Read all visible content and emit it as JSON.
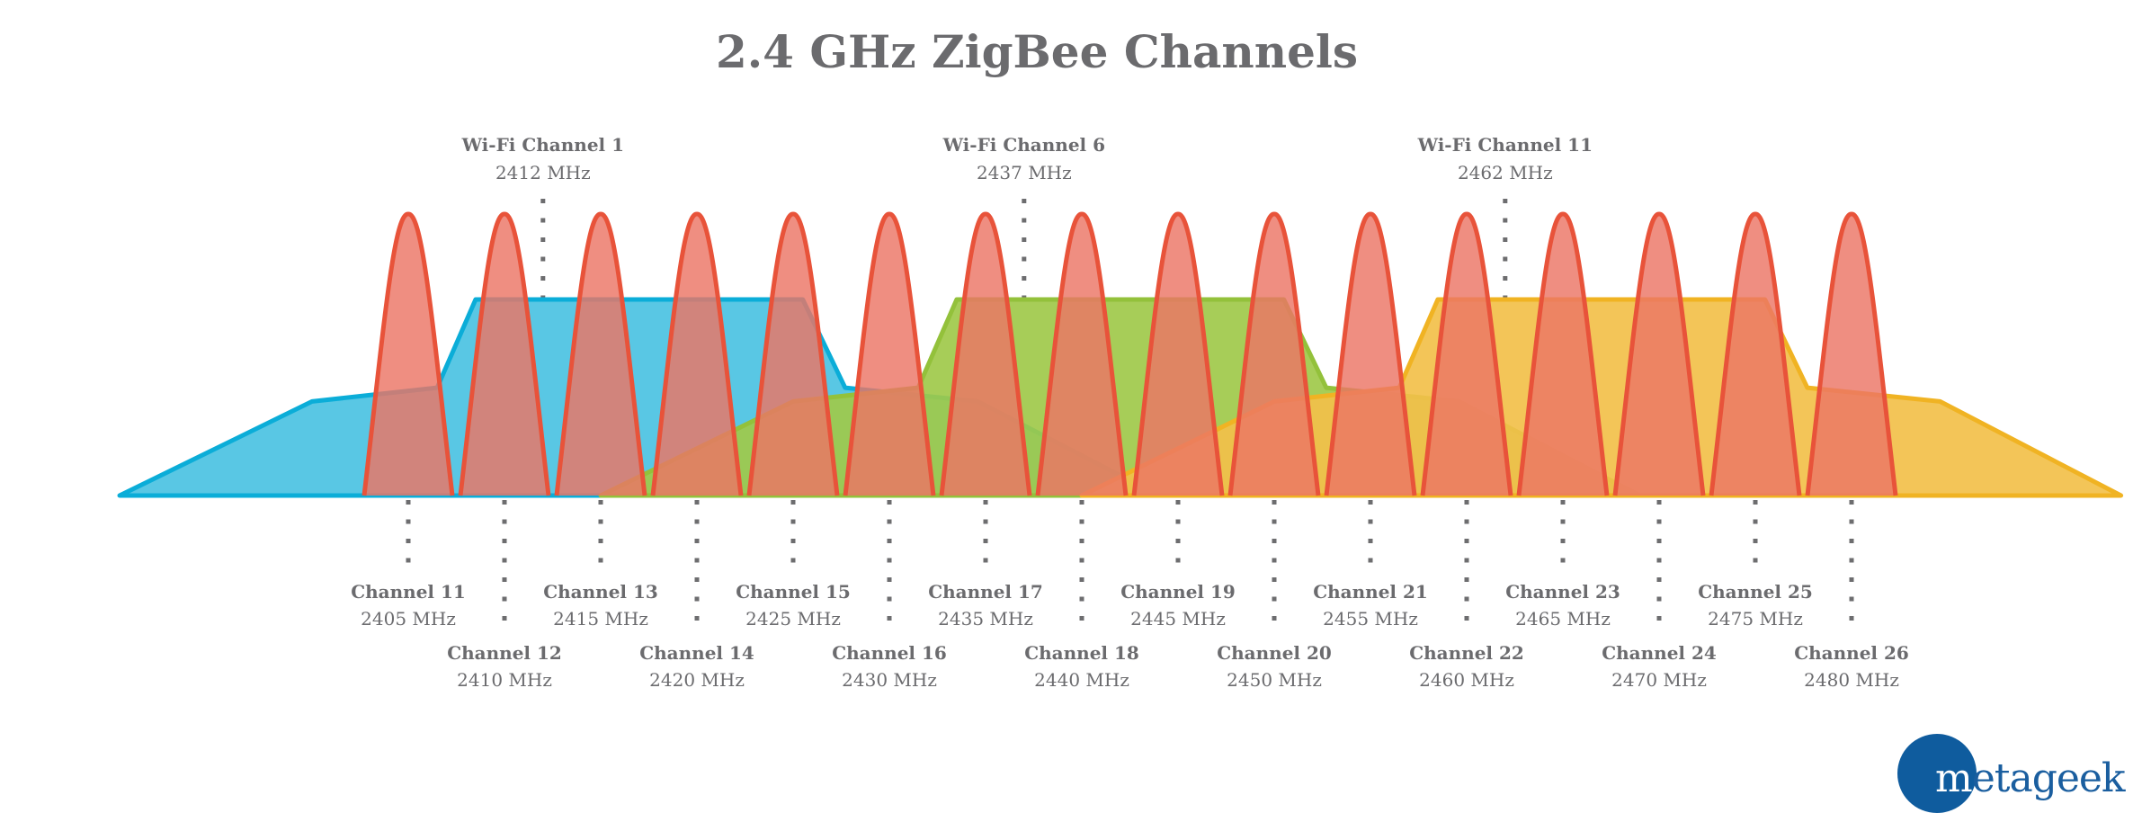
{
  "title": "2.4 GHz ZigBee Channels",
  "colors": {
    "text": "#6b6b6e",
    "dots": "#6d6d6f",
    "zigbee_stroke": "#e8533a",
    "zigbee_fill": "#ec7565",
    "wifi1_fill": "#4bc2e2",
    "wifi1_stroke": "#0badd8",
    "wifi6_fill": "#9fc94a",
    "wifi6_stroke": "#93c13b",
    "wifi11_fill": "#f2c04a",
    "wifi11_stroke": "#f0b323",
    "logo": "#0f5c9e"
  },
  "wifi_channels": [
    {
      "label": "Wi-Fi Channel 1",
      "freq": "2412 MHz"
    },
    {
      "label": "Wi-Fi Channel 6",
      "freq": "2437 MHz"
    },
    {
      "label": "Wi-Fi Channel 11",
      "freq": "2462 MHz"
    }
  ],
  "zigbee_channels": [
    {
      "label": "Channel 11",
      "freq": "2405 MHz"
    },
    {
      "label": "Channel 12",
      "freq": "2410 MHz"
    },
    {
      "label": "Channel 13",
      "freq": "2415 MHz"
    },
    {
      "label": "Channel 14",
      "freq": "2420 MHz"
    },
    {
      "label": "Channel 15",
      "freq": "2425 MHz"
    },
    {
      "label": "Channel 16",
      "freq": "2430 MHz"
    },
    {
      "label": "Channel 17",
      "freq": "2435 MHz"
    },
    {
      "label": "Channel 18",
      "freq": "2440 MHz"
    },
    {
      "label": "Channel 19",
      "freq": "2445 MHz"
    },
    {
      "label": "Channel 20",
      "freq": "2450 MHz"
    },
    {
      "label": "Channel 21",
      "freq": "2455 MHz"
    },
    {
      "label": "Channel 22",
      "freq": "2460 MHz"
    },
    {
      "label": "Channel 23",
      "freq": "2465 MHz"
    },
    {
      "label": "Channel 24",
      "freq": "2470 MHz"
    },
    {
      "label": "Channel 25",
      "freq": "2475 MHz"
    },
    {
      "label": "Channel 26",
      "freq": "2480 MHz"
    }
  ],
  "logo": {
    "text_m": "m",
    "text_rest": "etageek"
  },
  "chart_data": {
    "type": "area",
    "title": "2.4 GHz ZigBee Channels",
    "xlabel": "",
    "ylabel": "",
    "grid": false,
    "legend": "none",
    "x_unit": "MHz",
    "x_range": [
      2390,
      2484
    ],
    "series": [
      {
        "name": "Wi-Fi Channel 1",
        "center_mhz": 2412,
        "shape": "wifi-mask",
        "points_mhz_level": [
          [
            2390,
            0
          ],
          [
            2400,
            0.48
          ],
          [
            2406.5,
            0.55
          ],
          [
            2408.5,
            1
          ],
          [
            2425.5,
            1
          ],
          [
            2427.7,
            0.55
          ],
          [
            2434.6,
            0.48
          ],
          [
            2444,
            0
          ]
        ]
      },
      {
        "name": "Wi-Fi Channel 6",
        "center_mhz": 2437,
        "shape": "wifi-mask",
        "points_mhz_level": [
          [
            2415,
            0
          ],
          [
            2425,
            0.48
          ],
          [
            2431.5,
            0.55
          ],
          [
            2433.5,
            1
          ],
          [
            2450.5,
            1
          ],
          [
            2452.7,
            0.55
          ],
          [
            2459.6,
            0.48
          ],
          [
            2469,
            0
          ]
        ]
      },
      {
        "name": "Wi-Fi Channel 11",
        "center_mhz": 2462,
        "shape": "wifi-mask",
        "points_mhz_level": [
          [
            2440,
            0
          ],
          [
            2450,
            0.48
          ],
          [
            2456.5,
            0.55
          ],
          [
            2458.5,
            1
          ],
          [
            2475.5,
            1
          ],
          [
            2477.7,
            0.55
          ],
          [
            2484.6,
            0.48
          ],
          [
            2494,
            0
          ]
        ]
      },
      {
        "name": "ZigBee Channels",
        "shape": "narrow-peak",
        "peak_level": 1.4,
        "x": [
          2405,
          2410,
          2415,
          2420,
          2425,
          2430,
          2435,
          2440,
          2445,
          2450,
          2455,
          2460,
          2465,
          2470,
          2475,
          2480
        ],
        "labels": [
          "Channel 11",
          "Channel 12",
          "Channel 13",
          "Channel 14",
          "Channel 15",
          "Channel 16",
          "Channel 17",
          "Channel 18",
          "Channel 19",
          "Channel 20",
          "Channel 21",
          "Channel 22",
          "Channel 23",
          "Channel 24",
          "Channel 25",
          "Channel 26"
        ]
      }
    ],
    "annotations": [
      {
        "text": "Wi-Fi Channel 1",
        "sub": "2412 MHz",
        "x": 2412
      },
      {
        "text": "Wi-Fi Channel 6",
        "sub": "2437 MHz",
        "x": 2437
      },
      {
        "text": "Wi-Fi Channel 11",
        "sub": "2462 MHz",
        "x": 2462
      }
    ]
  }
}
